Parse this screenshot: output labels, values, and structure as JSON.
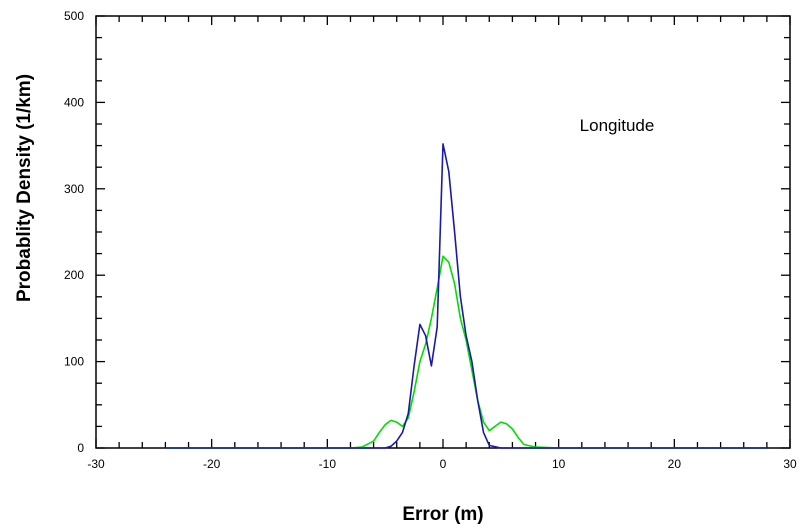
{
  "chart_data": {
    "type": "line",
    "title": "",
    "xlabel": "Error (m)",
    "ylabel": "Probablity Density (1/km)",
    "annotation": "Longitude",
    "xlim": [
      -30,
      30
    ],
    "ylim": [
      0,
      500
    ],
    "xticks": [
      -30,
      -20,
      -10,
      0,
      10,
      20,
      30
    ],
    "yticks": [
      0,
      100,
      200,
      300,
      400,
      500
    ],
    "grid": false,
    "legend": "none",
    "series": [
      {
        "color": "#00dd00",
        "x": [
          -24,
          -8,
          -7,
          -6,
          -5.5,
          -5,
          -4.5,
          -4,
          -3.5,
          -3,
          -2.5,
          -2,
          -1.5,
          -1,
          -0.5,
          0,
          0.5,
          1,
          1.5,
          2,
          2.5,
          3,
          3.5,
          4,
          4.5,
          5,
          5.5,
          6,
          6.5,
          7,
          8,
          10,
          28
        ],
        "y": [
          0,
          0,
          1,
          8,
          18,
          27,
          32,
          30,
          25,
          35,
          65,
          100,
          120,
          150,
          185,
          222,
          215,
          190,
          150,
          125,
          90,
          55,
          30,
          20,
          25,
          30,
          28,
          22,
          12,
          4,
          1,
          0,
          0
        ]
      },
      {
        "color": "#1a1aa8",
        "x": [
          -24,
          -5,
          -4.5,
          -4,
          -3.5,
          -3,
          -2.5,
          -2,
          -1.5,
          -1,
          -0.5,
          0,
          0.5,
          1,
          1.5,
          2,
          2.5,
          3,
          3.5,
          4,
          5,
          28
        ],
        "y": [
          0,
          0,
          2,
          8,
          18,
          40,
          95,
          143,
          130,
          95,
          140,
          352,
          320,
          250,
          175,
          130,
          100,
          55,
          18,
          3,
          0,
          0
        ]
      }
    ]
  }
}
